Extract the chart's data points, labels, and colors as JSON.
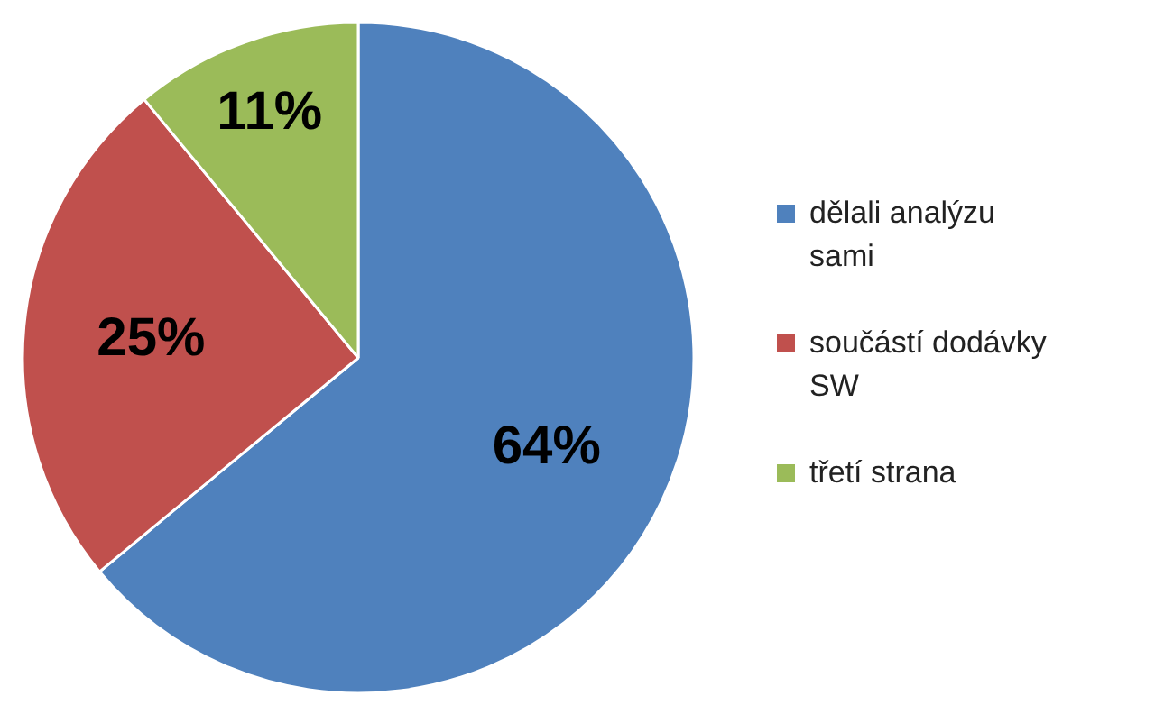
{
  "chart_data": {
    "type": "pie",
    "categories": [
      "dělali analýzu sami",
      "součástí dodávky SW",
      "třetí strana"
    ],
    "values": [
      64,
      25,
      11
    ],
    "colors": [
      "#4f81bd",
      "#c0504d",
      "#9bbb59"
    ],
    "value_labels": [
      "64%",
      "25%",
      "11%"
    ],
    "legend": "right"
  }
}
